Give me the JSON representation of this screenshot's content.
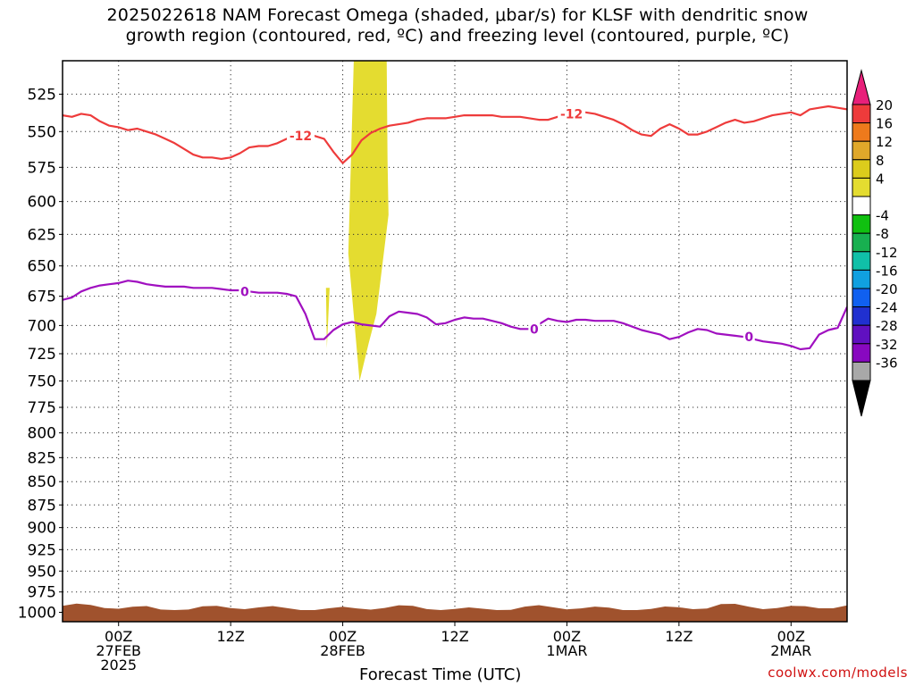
{
  "title": {
    "line1": "2025022618 NAM Forecast Omega (shaded, μbar/s) for KLSF with dendritic snow",
    "line2": "growth region (contoured, red, ºC) and freezing level (contoured, purple, ºC)"
  },
  "credit": "coolwx.com/models",
  "chart_data": {
    "type": "heatmap",
    "xlabel": "Forecast Time (UTC)",
    "ylabel": "",
    "x_units": "hours since 2025-02-26 18Z",
    "xlim": [
      0,
      84
    ],
    "ylim": [
      1000,
      500
    ],
    "y_scale": "log-pressure",
    "y_ticks": [
      525,
      550,
      575,
      600,
      625,
      650,
      675,
      700,
      725,
      750,
      775,
      800,
      825,
      850,
      875,
      900,
      925,
      950,
      975,
      1000
    ],
    "x_ticks": [
      {
        "x": 6,
        "label": [
          "00Z",
          "27FEB",
          "2025"
        ]
      },
      {
        "x": 18,
        "label": [
          "12Z"
        ]
      },
      {
        "x": 30,
        "label": [
          "00Z",
          "28FEB"
        ]
      },
      {
        "x": 42,
        "label": [
          "12Z"
        ]
      },
      {
        "x": 54,
        "label": [
          "00Z",
          "1MAR"
        ]
      },
      {
        "x": 66,
        "label": [
          "12Z"
        ]
      },
      {
        "x": 78,
        "label": [
          "00Z",
          "2MAR"
        ]
      }
    ],
    "grid": true,
    "colorbar": {
      "labels": [
        "20",
        "16",
        "12",
        "8",
        "4",
        "-4",
        "-8",
        "-12",
        "-16",
        "-20",
        "-24",
        "-28",
        "-32",
        "-36"
      ],
      "colors": [
        "#e8207a",
        "#ee3b3b",
        "#ee7a1c",
        "#e0a82a",
        "#dccc1c",
        "#e4dc30",
        "#ffffff",
        "#10c010",
        "#18b050",
        "#10c0a8",
        "#10a0e0",
        "#1060f0",
        "#2030d0",
        "#6010c0",
        "#8808c0",
        "#a8a8a8",
        "#000000"
      ]
    },
    "shaded": [
      {
        "name": "omega 4 to 8",
        "color": "#e4dc30",
        "x": [
          31.2,
          34.7,
          34.8,
          34.9,
          33.6,
          32.8,
          31.8,
          30.6,
          31.2
        ],
        "y": [
          500,
          500,
          570,
          610,
          690,
          715,
          750,
          640,
          500
        ]
      },
      {
        "name": "omega 4 to 8 small",
        "color": "#e4dc30",
        "x": [
          28.2,
          28.6,
          28.3
        ],
        "y": [
          668,
          668,
          720
        ]
      }
    ],
    "series": [
      {
        "name": "-12",
        "color": "#ee3b3b",
        "x": [
          0,
          1,
          2,
          3,
          4,
          5,
          6,
          7,
          8,
          9,
          10,
          11,
          12,
          13,
          14,
          15,
          16,
          17,
          18,
          19,
          20,
          21,
          22,
          23,
          24,
          25,
          26,
          27,
          28,
          29,
          30,
          31,
          32,
          33,
          34,
          35,
          36,
          37,
          38,
          39,
          40,
          41,
          42,
          43,
          44,
          45,
          46,
          47,
          48,
          49,
          50,
          51,
          52,
          53,
          54,
          55,
          56,
          57,
          58,
          59,
          60,
          61,
          62,
          63,
          64,
          65,
          66,
          67,
          68,
          69,
          70,
          71,
          72,
          73,
          74,
          75,
          76,
          77,
          78,
          79,
          80,
          81,
          82,
          83,
          84
        ],
        "y": [
          539,
          540,
          538,
          539,
          543,
          546,
          547,
          549,
          548,
          550,
          552,
          555,
          558,
          562,
          566,
          568,
          568,
          569,
          568,
          565,
          561,
          560,
          560,
          558,
          555,
          553,
          553,
          553,
          555,
          564,
          572,
          566,
          556,
          551,
          548,
          546,
          545,
          544,
          542,
          541,
          541,
          541,
          540,
          539,
          539,
          539,
          539,
          540,
          540,
          540,
          541,
          542,
          542,
          540,
          538,
          537,
          537,
          538,
          540,
          542,
          545,
          549,
          552,
          553,
          548,
          545,
          548,
          552,
          552,
          550,
          547,
          544,
          542,
          544,
          543,
          541,
          539,
          538,
          537,
          539,
          535,
          534,
          533,
          534,
          535
        ]
      },
      {
        "name": "0",
        "color": "#a010c0",
        "x": [
          0,
          1,
          2,
          3,
          4,
          5,
          6,
          7,
          8,
          9,
          10,
          11,
          12,
          13,
          14,
          15,
          16,
          17,
          18,
          19,
          20,
          21,
          22,
          23,
          24,
          25,
          26,
          27,
          28,
          29,
          30,
          31,
          32,
          33,
          34,
          35,
          36,
          37,
          38,
          39,
          40,
          41,
          42,
          43,
          44,
          45,
          46,
          47,
          48,
          49,
          50,
          51,
          52,
          53,
          54,
          55,
          56,
          57,
          58,
          59,
          60,
          61,
          62,
          63,
          64,
          65,
          66,
          67,
          68,
          69,
          70,
          71,
          72,
          73,
          74,
          75,
          76,
          77,
          78,
          79,
          80,
          81,
          82,
          83,
          84
        ],
        "y": [
          678,
          676,
          671,
          668,
          666,
          665,
          664,
          662,
          663,
          665,
          666,
          667,
          667,
          667,
          668,
          668,
          668,
          669,
          670,
          670,
          671,
          672,
          672,
          672,
          673,
          675,
          690,
          712,
          712,
          704,
          699,
          697,
          699,
          700,
          701,
          692,
          688,
          689,
          690,
          693,
          699,
          698,
          695,
          693,
          694,
          694,
          696,
          698,
          701,
          703,
          703,
          699,
          694,
          696,
          697,
          695,
          695,
          696,
          696,
          696,
          698,
          701,
          704,
          706,
          708,
          712,
          710,
          706,
          703,
          704,
          707,
          708,
          709,
          710,
          712,
          714,
          715,
          716,
          718,
          721,
          720,
          708,
          704,
          702,
          684
        ]
      }
    ],
    "contour_labels": [
      {
        "series": "-12",
        "text": "-12",
        "x": 25.5,
        "y": 553
      },
      {
        "series": "-12",
        "text": "-12",
        "x": 54.5,
        "y": 538
      },
      {
        "series": "0",
        "text": "0",
        "x": 19.5,
        "y": 671
      },
      {
        "series": "0",
        "text": "0",
        "x": 50.5,
        "y": 703
      },
      {
        "series": "0",
        "text": "0",
        "x": 73.5,
        "y": 710
      }
    ],
    "terrain": {
      "color": "#a0522d"
    }
  }
}
